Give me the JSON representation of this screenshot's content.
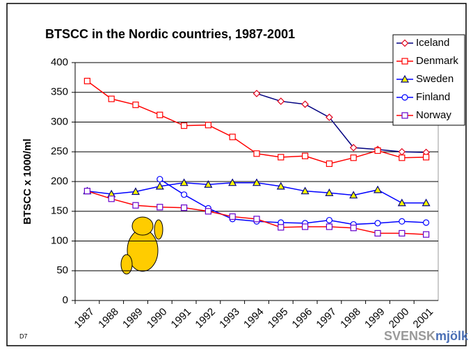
{
  "chart_data": {
    "type": "line",
    "title": "BTSCC in the Nordic countries, 1987-2001",
    "y_label": "BTSCC x 1000/ml",
    "categories": [
      "1987",
      "1988",
      "1989",
      "1990",
      "1991",
      "1992",
      "1993",
      "1994",
      "1995",
      "1996",
      "1997",
      "1998",
      "1999",
      "2000",
      "2001"
    ],
    "series": [
      {
        "name": "Iceland",
        "color": "#e0001a",
        "line_color": "#000080",
        "marker": "diamond",
        "marker_fill": "#ffffff",
        "values": [
          null,
          null,
          null,
          null,
          null,
          null,
          null,
          348,
          335,
          330,
          308,
          257,
          254,
          250,
          249
        ]
      },
      {
        "name": "Denmark",
        "color": "#ff0000",
        "line_color": "#ff0000",
        "marker": "square",
        "marker_fill": "#ffffff",
        "values": [
          369,
          339,
          329,
          312,
          294,
          295,
          275,
          247,
          241,
          243,
          230,
          240,
          252,
          240,
          241
        ]
      },
      {
        "name": "Sweden",
        "color": "#000080",
        "line_color": "#0000ff",
        "marker": "triangle",
        "marker_fill": "#ffff00",
        "values": [
          184,
          179,
          183,
          192,
          198,
          195,
          198,
          198,
          192,
          184,
          181,
          177,
          186,
          164,
          164
        ]
      },
      {
        "name": "Finland",
        "color": "#0000ff",
        "line_color": "#0000ff",
        "marker": "circle",
        "marker_fill": "#ffffff",
        "values": [
          null,
          null,
          null,
          204,
          178,
          155,
          137,
          133,
          131,
          130,
          135,
          128,
          130,
          133,
          131
        ]
      },
      {
        "name": "Norway",
        "color": "#6600cc",
        "line_color": "#ff0000",
        "marker": "square",
        "marker_fill": "#ffffff",
        "values": [
          184,
          171,
          160,
          157,
          156,
          150,
          141,
          137,
          123,
          124,
          124,
          122,
          113,
          113,
          111
        ]
      }
    ],
    "ylim": [
      0,
      400
    ],
    "yticks": [
      0,
      50,
      100,
      150,
      200,
      250,
      300,
      350,
      400
    ],
    "grid": true,
    "legend": "top-right",
    "footer_left": "D7",
    "logo_a": "SVENSK",
    "logo_b": "mjölk"
  }
}
